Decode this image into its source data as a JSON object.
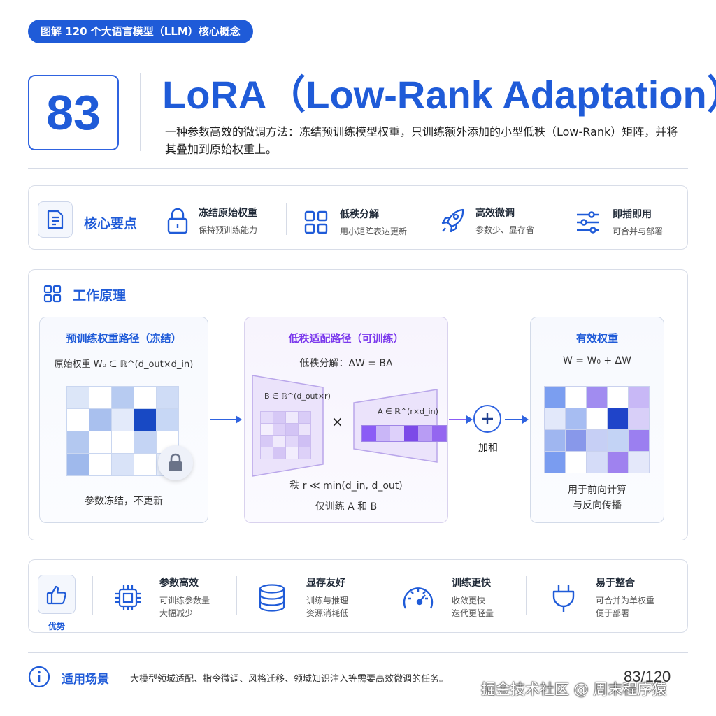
{
  "series": "图解 120 个大语言模型（LLM）核心概念",
  "number": "83",
  "title": "LoRA（Low-Rank Adaptation）",
  "description": "一种参数高效的微调方法：冻结预训练模型权重，只训练额外添加的小型低秩（Low-Rank）矩阵，并将其叠加到原始权重上。",
  "key_points": {
    "title": "核心要点",
    "items": [
      {
        "icon": "lock-icon",
        "title": "冻结原始权重",
        "sub": "保持预训练能力"
      },
      {
        "icon": "grid-icon",
        "title": "低秩分解",
        "sub": "用小矩阵表达更新"
      },
      {
        "icon": "rocket-icon",
        "title": "高效微调",
        "sub": "参数少、显存省"
      },
      {
        "icon": "sliders-icon",
        "title": "即插即用",
        "sub": "可合并与部署"
      }
    ]
  },
  "principle": {
    "title": "工作原理",
    "frozen": {
      "title": "预训练权重路径（冻结）",
      "formula": "原始权重 W₀ ∈ ℝ^(d_out×d_in)",
      "note": "参数冻结，不更新"
    },
    "lowrank": {
      "title": "低秩适配路径（可训练）",
      "formula": "低秩分解：ΔW = BA",
      "b_label": "B ∈ ℝ^(d_out×r)",
      "a_label": "A ∈ ℝ^(r×d_in)",
      "times": "×",
      "rank_note": "秩 r ≪ min(d_in, d_out)",
      "train_note": "仅训练 A 和 B"
    },
    "sum_label": "加和",
    "effective": {
      "title": "有效权重",
      "formula": "W = W₀ + ΔW",
      "note1": "用于前向计算",
      "note2": "与反向传播"
    }
  },
  "advantages": {
    "title": "优势",
    "items": [
      {
        "icon": "chip-icon",
        "title": "参数高效",
        "sub1": "可训练参数量",
        "sub2": "大幅减少"
      },
      {
        "icon": "database-icon",
        "title": "显存友好",
        "sub1": "训练与推理",
        "sub2": "资源消耗低"
      },
      {
        "icon": "gauge-icon",
        "title": "训练更快",
        "sub1": "收敛更快",
        "sub2": "迭代更轻量"
      },
      {
        "icon": "plug-icon",
        "title": "易于整合",
        "sub1": "可合并为单权重",
        "sub2": "便于部署"
      }
    ]
  },
  "scenarios": {
    "title": "适用场景",
    "text": "大模型领域适配、指令微调、风格迁移、领域知识注入等需要高效微调的任务。"
  },
  "page": "83/120",
  "watermark": "掘金技术社区 @ 周末程序猿",
  "colors": {
    "accent": "#1f5bd8",
    "purple": "#8b5cf6"
  }
}
